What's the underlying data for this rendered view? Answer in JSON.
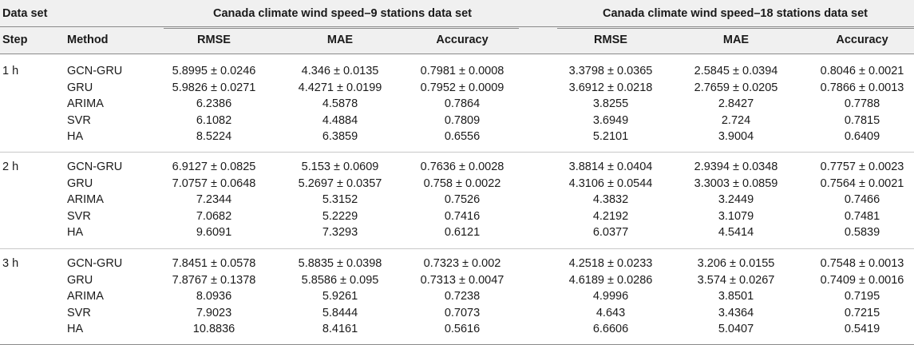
{
  "header": {
    "dataset_label": "Data set",
    "group1": "Canada climate wind speed–9 stations data set",
    "group2": "Canada climate wind speed–18 stations data set",
    "step_label": "Step",
    "method_label": "Method",
    "metrics": [
      "RMSE",
      "MAE",
      "Accuracy",
      "RMSE",
      "MAE",
      "Accuracy"
    ]
  },
  "groups": [
    {
      "step": "1 h",
      "rows": [
        {
          "method": "GCN-GRU",
          "values": [
            "5.8995 ± 0.0246",
            "4.346 ± 0.0135",
            "0.7981 ± 0.0008",
            "3.3798 ± 0.0365",
            "2.5845 ± 0.0394",
            "0.8046 ± 0.0021"
          ]
        },
        {
          "method": "GRU",
          "values": [
            "5.9826 ± 0.0271",
            "4.4271 ± 0.0199",
            "0.7952 ± 0.0009",
            "3.6912 ± 0.0218",
            "2.7659 ± 0.0205",
            "0.7866 ± 0.0013"
          ]
        },
        {
          "method": "ARIMA",
          "values": [
            "6.2386",
            "4.5878",
            "0.7864",
            "3.8255",
            "2.8427",
            "0.7788"
          ]
        },
        {
          "method": "SVR",
          "values": [
            "6.1082",
            "4.4884",
            "0.7809",
            "3.6949",
            "2.724",
            "0.7815"
          ]
        },
        {
          "method": "HA",
          "values": [
            "8.5224",
            "6.3859",
            "0.6556",
            "5.2101",
            "3.9004",
            "0.6409"
          ]
        }
      ]
    },
    {
      "step": "2 h",
      "rows": [
        {
          "method": "GCN-GRU",
          "values": [
            "6.9127 ± 0.0825",
            "5.153 ± 0.0609",
            "0.7636 ± 0.0028",
            "3.8814 ± 0.0404",
            "2.9394 ± 0.0348",
            "0.7757 ± 0.0023"
          ]
        },
        {
          "method": "GRU",
          "values": [
            "7.0757 ± 0.0648",
            "5.2697 ± 0.0357",
            "0.758 ± 0.0022",
            "4.3106 ± 0.0544",
            "3.3003 ± 0.0859",
            "0.7564 ± 0.0021"
          ]
        },
        {
          "method": "ARIMA",
          "values": [
            "7.2344",
            "5.3152",
            "0.7526",
            "4.3832",
            "3.2449",
            "0.7466"
          ]
        },
        {
          "method": "SVR",
          "values": [
            "7.0682",
            "5.2229",
            "0.7416",
            "4.2192",
            "3.1079",
            "0.7481"
          ]
        },
        {
          "method": "HA",
          "values": [
            "9.6091",
            "7.3293",
            "0.6121",
            "6.0377",
            "4.5414",
            "0.5839"
          ]
        }
      ]
    },
    {
      "step": "3 h",
      "rows": [
        {
          "method": "GCN-GRU",
          "values": [
            "7.8451 ± 0.0578",
            "5.8835 ± 0.0398",
            "0.7323 ± 0.002",
            "4.2518 ± 0.0233",
            "3.206 ± 0.0155",
            "0.7548 ± 0.0013"
          ]
        },
        {
          "method": "GRU",
          "values": [
            "7.8767 ± 0.1378",
            "5.8586 ± 0.095",
            "0.7313 ± 0.0047",
            "4.6189 ± 0.0286",
            "3.574 ± 0.0267",
            "0.7409 ± 0.0016"
          ]
        },
        {
          "method": "ARIMA",
          "values": [
            "8.0936",
            "5.9261",
            "0.7238",
            "4.9996",
            "3.8501",
            "0.7195"
          ]
        },
        {
          "method": "SVR",
          "values": [
            "7.9023",
            "5.8444",
            "0.7073",
            "4.643",
            "3.4364",
            "0.7215"
          ]
        },
        {
          "method": "HA",
          "values": [
            "10.8836",
            "8.4161",
            "0.5616",
            "6.6606",
            "5.0407",
            "0.5419"
          ]
        }
      ]
    }
  ]
}
